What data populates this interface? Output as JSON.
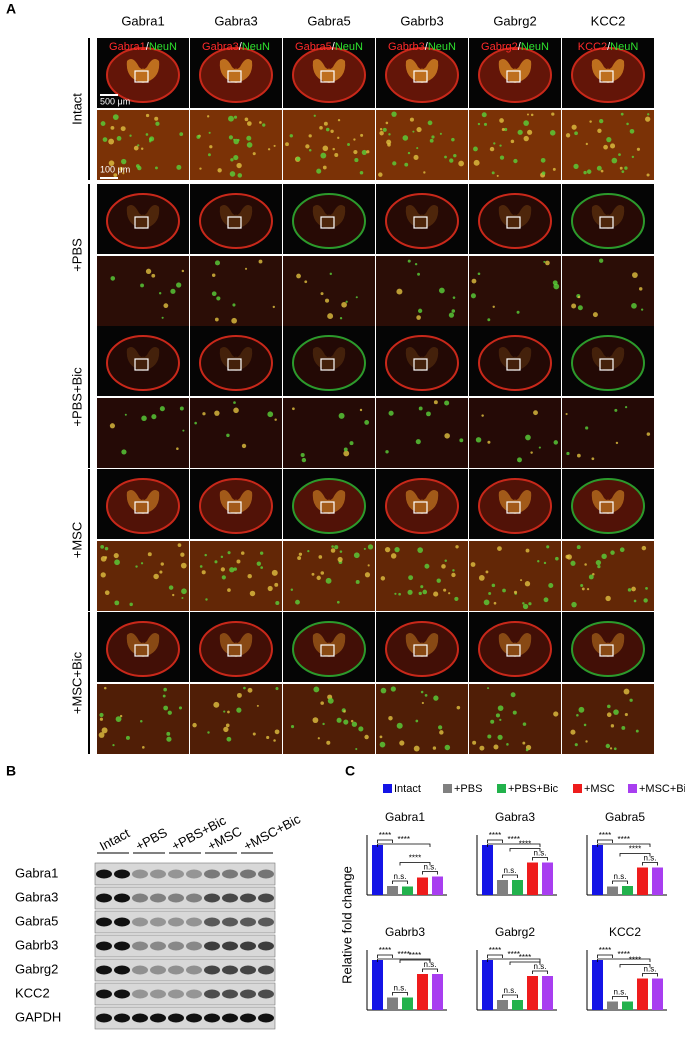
{
  "panel_labels": [
    "A",
    "B",
    "C"
  ],
  "groups": [
    "Intact",
    "+PBS",
    "+PBS+Bic",
    "+MSC",
    "+MSC+Bic"
  ],
  "colors": [
    "#1414e6",
    "#808080",
    "#22b24c",
    "#ee1c1c",
    "#a83ef0"
  ],
  "panel_a": {
    "columns": [
      "Gabra1",
      "Gabra3",
      "Gabra5",
      "Gabrb3",
      "Gabrg2",
      "KCC2"
    ],
    "counterstain": "NeuN",
    "separator": "/",
    "scale_bars": [
      "500 μm",
      "100 μm"
    ]
  },
  "panel_b": {
    "loading_control": "GAPDH"
  },
  "y_label": "Relative fold change",
  "chart_data": [
    {
      "type": "bar",
      "title": "Gabra1",
      "values": [
        1,
        0.18,
        0.17,
        0.35,
        0.37
      ],
      "ylim": [
        0,
        1.2
      ],
      "annotations": [
        "****",
        "****",
        "****",
        "n.s.",
        "n.s."
      ]
    },
    {
      "type": "bar",
      "title": "Gabra3",
      "values": [
        1,
        0.3,
        0.3,
        0.65,
        0.65
      ],
      "ylim": [
        0,
        1.2
      ],
      "annotations": [
        "****",
        "****",
        "****",
        "n.s.",
        "n.s."
      ]
    },
    {
      "type": "bar",
      "title": "Gabra5",
      "values": [
        1,
        0.17,
        0.18,
        0.55,
        0.55
      ],
      "ylim": [
        0,
        1.2
      ],
      "annotations": [
        "****",
        "****",
        "****",
        "n.s.",
        "n.s."
      ]
    },
    {
      "type": "bar",
      "title": "Gabrb3",
      "values": [
        1,
        0.25,
        0.25,
        0.72,
        0.72
      ],
      "ylim": [
        0,
        1.2
      ],
      "annotations": [
        "****",
        "****",
        "****",
        "n.s.",
        "n.s."
      ]
    },
    {
      "type": "bar",
      "title": "Gabrg2",
      "values": [
        1,
        0.2,
        0.2,
        0.68,
        0.68
      ],
      "ylim": [
        0,
        1.2
      ],
      "annotations": [
        "****",
        "****",
        "****",
        "n.s.",
        "n.s."
      ]
    },
    {
      "type": "bar",
      "title": "KCC2",
      "values": [
        1,
        0.17,
        0.17,
        0.63,
        0.63
      ],
      "ylim": [
        0,
        1.2
      ],
      "annotations": [
        "****",
        "****",
        "****",
        "n.s.",
        "n.s."
      ]
    }
  ]
}
